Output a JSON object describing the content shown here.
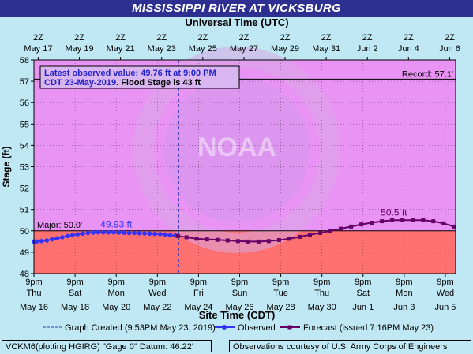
{
  "header": {
    "title": "MISSISSIPPI RIVER AT VICKSBURG"
  },
  "chart_data": {
    "type": "line",
    "title": "MISSISSIPPI RIVER AT VICKSBURG",
    "top_axis_label": "Universal Time (UTC)",
    "xlabel": "Site Time (CDT)",
    "ylabel": "Stage (ft)",
    "ylim": [
      48,
      58
    ],
    "yticks": [
      48,
      49,
      50,
      51,
      52,
      53,
      54,
      55,
      56,
      57,
      58
    ],
    "x_range_days": [
      "May 16 21:00",
      "Jun 6 09:00"
    ],
    "bottom_ticks": [
      {
        "time": "9pm",
        "day": "Thu",
        "date": "May 16"
      },
      {
        "time": "9pm",
        "day": "Sat",
        "date": "May 18"
      },
      {
        "time": "9pm",
        "day": "Mon",
        "date": "May 20"
      },
      {
        "time": "9pm",
        "day": "Wed",
        "date": "May 22"
      },
      {
        "time": "9pm",
        "day": "Fri",
        "date": "May 24"
      },
      {
        "time": "9pm",
        "day": "Sun",
        "date": "May 26"
      },
      {
        "time": "9pm",
        "day": "Tue",
        "date": "May 28"
      },
      {
        "time": "9pm",
        "day": "Thu",
        "date": "May 30"
      },
      {
        "time": "9pm",
        "day": "Sat",
        "date": "Jun 1"
      },
      {
        "time": "9pm",
        "day": "Mon",
        "date": "Jun 3"
      },
      {
        "time": "9pm",
        "day": "Wed",
        "date": "Jun 5"
      }
    ],
    "top_ticks": [
      {
        "hour": "2Z",
        "date": "May 17"
      },
      {
        "hour": "2Z",
        "date": "May 19"
      },
      {
        "hour": "2Z",
        "date": "May 21"
      },
      {
        "hour": "2Z",
        "date": "May 23"
      },
      {
        "hour": "2Z",
        "date": "May 25"
      },
      {
        "hour": "2Z",
        "date": "May 27"
      },
      {
        "hour": "2Z",
        "date": "May 29"
      },
      {
        "hour": "2Z",
        "date": "May 31"
      },
      {
        "hour": "2Z",
        "date": "Jun  2"
      },
      {
        "hour": "2Z",
        "date": "Jun  4"
      },
      {
        "hour": "2Z",
        "date": "Jun  6"
      }
    ],
    "thresholds": [
      {
        "label": "Major: 50.0'",
        "value": 50.0,
        "fill": "#ff7070"
      },
      {
        "label": "Record:  57.1'",
        "value": 57.1
      }
    ],
    "background_fill": "#e993f5",
    "graph_created": "May 23 21:53",
    "series": [
      {
        "name": "Observed",
        "color": "#3333ff",
        "marker": "circle",
        "peak_label": "49.93 ft",
        "peak_label_at": "May 20 21:00",
        "points": [
          [
            "May 16 21:00",
            49.5
          ],
          [
            "May 17 00:00",
            49.5
          ],
          [
            "May 17 06:00",
            49.52
          ],
          [
            "May 17 12:00",
            49.55
          ],
          [
            "May 17 18:00",
            49.6
          ],
          [
            "May 18 00:00",
            49.65
          ],
          [
            "May 18 06:00",
            49.7
          ],
          [
            "May 18 12:00",
            49.76
          ],
          [
            "May 18 18:00",
            49.8
          ],
          [
            "May 19 00:00",
            49.84
          ],
          [
            "May 19 06:00",
            49.87
          ],
          [
            "May 19 12:00",
            49.9
          ],
          [
            "May 19 18:00",
            49.92
          ],
          [
            "May 20 00:00",
            49.93
          ],
          [
            "May 20 06:00",
            49.93
          ],
          [
            "May 20 12:00",
            49.93
          ],
          [
            "May 20 18:00",
            49.93
          ],
          [
            "May 21 00:00",
            49.92
          ],
          [
            "May 21 06:00",
            49.91
          ],
          [
            "May 21 12:00",
            49.9
          ],
          [
            "May 21 18:00",
            49.9
          ],
          [
            "May 22 00:00",
            49.89
          ],
          [
            "May 22 06:00",
            49.88
          ],
          [
            "May 22 12:00",
            49.87
          ],
          [
            "May 22 18:00",
            49.86
          ],
          [
            "May 23 00:00",
            49.85
          ],
          [
            "May 23 06:00",
            49.83
          ],
          [
            "May 23 12:00",
            49.8
          ],
          [
            "May 23 18:00",
            49.78
          ],
          [
            "May 23 21:00",
            49.76
          ]
        ]
      },
      {
        "name": "Forecast (issued 7:16PM May 23)",
        "color": "#660066",
        "marker": "square",
        "peak_label": "50.5 ft",
        "peak_label_at": "Jun 3 09:00",
        "points": [
          [
            "May 23 21:00",
            49.76
          ],
          [
            "May 24 07:00",
            49.7
          ],
          [
            "May 24 19:00",
            49.63
          ],
          [
            "May 25 07:00",
            49.6
          ],
          [
            "May 25 19:00",
            49.58
          ],
          [
            "May 26 07:00",
            49.55
          ],
          [
            "May 26 19:00",
            49.52
          ],
          [
            "May 27 07:00",
            49.5
          ],
          [
            "May 27 19:00",
            49.5
          ],
          [
            "May 28 07:00",
            49.52
          ],
          [
            "May 28 19:00",
            49.57
          ],
          [
            "May 29 07:00",
            49.63
          ],
          [
            "May 29 19:00",
            49.72
          ],
          [
            "May 30 07:00",
            49.82
          ],
          [
            "May 30 19:00",
            49.9
          ],
          [
            "May 31 07:00",
            50.0
          ],
          [
            "May 31 19:00",
            50.1
          ],
          [
            "Jun 1 07:00",
            50.2
          ],
          [
            "Jun 1 19:00",
            50.3
          ],
          [
            "Jun 2 07:00",
            50.38
          ],
          [
            "Jun 2 19:00",
            50.45
          ],
          [
            "Jun 3 07:00",
            50.5
          ],
          [
            "Jun 3 19:00",
            50.5
          ],
          [
            "Jun 4 07:00",
            50.5
          ],
          [
            "Jun 4 19:00",
            50.5
          ],
          [
            "Jun 5 07:00",
            50.45
          ],
          [
            "Jun 5 19:00",
            50.35
          ],
          [
            "Jun 6 07:00",
            50.2
          ]
        ]
      }
    ],
    "info_box": {
      "line1": "Latest observed value: 49.76 ft at 9:00 PM",
      "line2_blue": "CDT 23-May-2019",
      "line2_black": ". Flood Stage is 43 ft"
    },
    "legend": {
      "created": "Graph Created (9:53PM May 23, 2019)",
      "observed": "Observed",
      "forecast": "Forecast (issued 7:16PM May 23)"
    },
    "watermark": "NOAA"
  },
  "footer": {
    "left": "VCKM6(plotting HGIRG) \"Gage 0\" Datum: 46.22'",
    "right": "Observations courtesy of U.S. Army Corps of Engineers"
  }
}
